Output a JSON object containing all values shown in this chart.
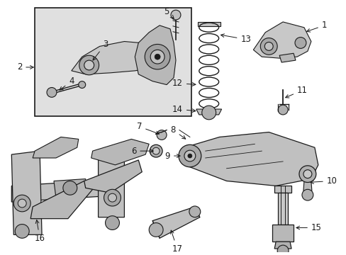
{
  "bg_color": "#ffffff",
  "fig_width": 4.89,
  "fig_height": 3.6,
  "dpi": 100,
  "line_color": "#1a1a1a",
  "gray_fill": "#d0d0d0",
  "gray_dark": "#a0a0a0",
  "gray_light": "#e8e8e8",
  "inset_fill": "#e0e0e0",
  "label_fontsize": 8.5,
  "arrow_lw": 0.7,
  "part_lw": 0.9
}
